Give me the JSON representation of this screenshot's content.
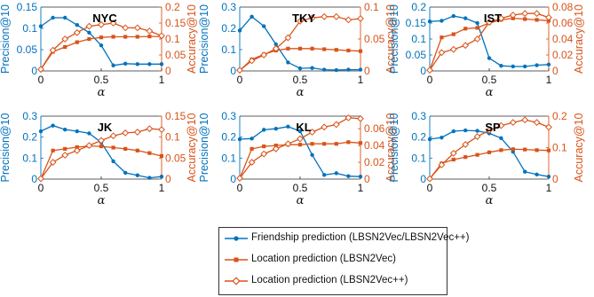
{
  "colors": {
    "friendship": "#0072BD",
    "location": "#D95319",
    "axis": "#262626"
  },
  "legend": [
    {
      "key": "friendship",
      "label": "Friendship prediction (LBSN2Vec/LBSN2Vec++)",
      "color": "#0072BD",
      "marker": "filled-circle"
    },
    {
      "key": "loc_lbsn2vec",
      "label": "Location prediction (LBSN2Vec)",
      "color": "#D95319",
      "marker": "filled-square"
    },
    {
      "key": "loc_lbsn2vecpp",
      "label": "Location prediction (LBSN2Vec++)",
      "color": "#D95319",
      "marker": "open-diamond"
    }
  ],
  "chart_data": [
    {
      "type": "line",
      "title": "NYC",
      "xlabel": "α",
      "ylabel_left": "Precision@10",
      "ylabel_right": "Accuracy@10",
      "x": [
        0,
        0.1,
        0.2,
        0.3,
        0.4,
        0.5,
        0.6,
        0.7,
        0.8,
        0.9,
        1.0
      ],
      "xlim": [
        0,
        1
      ],
      "xticks": [
        "0",
        "0.5",
        "1"
      ],
      "ylim_left": [
        0,
        0.15
      ],
      "yticks_left": [
        "0",
        "0.05",
        "0.1",
        "0.15"
      ],
      "ylim_right": [
        0,
        0.2
      ],
      "yticks_right": [
        "0",
        "0.05",
        "0.1",
        "0.15",
        "0.2"
      ],
      "series": [
        {
          "name": "Friendship prediction (LBSN2Vec/LBSN2Vec++)",
          "axis": "left",
          "marker": "filled-circle",
          "values": [
            0.105,
            0.125,
            0.125,
            0.108,
            0.09,
            0.06,
            0.013,
            0.017,
            0.016,
            0.016,
            0.016
          ]
        },
        {
          "name": "Location prediction (LBSN2Vec)",
          "axis": "right",
          "marker": "filled-square",
          "values": [
            0.005,
            0.06,
            0.075,
            0.09,
            0.1,
            0.105,
            0.107,
            0.107,
            0.107,
            0.108,
            0.108
          ]
        },
        {
          "name": "Location prediction (LBSN2Vec++)",
          "axis": "right",
          "marker": "open-diamond",
          "values": [
            0.005,
            0.065,
            0.1,
            0.12,
            0.14,
            0.145,
            0.15,
            0.135,
            0.135,
            0.125,
            0.11
          ]
        }
      ]
    },
    {
      "type": "line",
      "title": "TKY",
      "xlabel": "α",
      "ylabel_left": "Precision@10",
      "ylabel_right": "Accuracy@10",
      "x": [
        0,
        0.1,
        0.2,
        0.3,
        0.4,
        0.5,
        0.6,
        0.7,
        0.8,
        0.9,
        1.0
      ],
      "xlim": [
        0,
        1
      ],
      "xticks": [
        "0",
        "0.5",
        "1"
      ],
      "ylim_left": [
        0,
        0.3
      ],
      "yticks_left": [
        "0",
        "0.1",
        "0.2",
        "0.3"
      ],
      "ylim_right": [
        0,
        0.1
      ],
      "yticks_right": [
        "0",
        "0.05",
        "0.1"
      ],
      "series": [
        {
          "name": "Friendship prediction (LBSN2Vec/LBSN2Vec++)",
          "axis": "left",
          "marker": "filled-circle",
          "values": [
            0.19,
            0.255,
            0.21,
            0.125,
            0.04,
            0.012,
            0.014,
            0.006,
            0.004,
            0.006,
            0.006
          ]
        },
        {
          "name": "Location prediction (LBSN2Vec)",
          "axis": "right",
          "marker": "filled-square",
          "values": [
            0.001,
            0.018,
            0.026,
            0.032,
            0.035,
            0.035,
            0.035,
            0.034,
            0.033,
            0.032,
            0.031
          ]
        },
        {
          "name": "Location prediction (LBSN2Vec++)",
          "axis": "right",
          "marker": "open-diamond",
          "values": [
            0.001,
            0.016,
            0.025,
            0.035,
            0.052,
            0.078,
            0.083,
            0.085,
            0.085,
            0.08,
            0.082
          ]
        }
      ]
    },
    {
      "type": "line",
      "title": "IST",
      "xlabel": "α",
      "ylabel_left": "Precision@10",
      "ylabel_right": "Accuracy@10",
      "x": [
        0,
        0.1,
        0.2,
        0.3,
        0.4,
        0.5,
        0.6,
        0.7,
        0.8,
        0.9,
        1.0
      ],
      "xlim": [
        0,
        1
      ],
      "xticks": [
        "0",
        "0.5",
        "1"
      ],
      "ylim_left": [
        0,
        0.2
      ],
      "yticks_left": [
        "0",
        "0.05",
        "0.1",
        "0.15",
        "0.2"
      ],
      "ylim_right": [
        0,
        0.08
      ],
      "yticks_right": [
        "0",
        "0.02",
        "0.04",
        "0.06",
        "0.08"
      ],
      "series": [
        {
          "name": "Friendship prediction (LBSN2Vec/LBSN2Vec++)",
          "axis": "left",
          "marker": "filled-circle",
          "values": [
            0.155,
            0.157,
            0.172,
            0.165,
            0.15,
            0.04,
            0.016,
            0.014,
            0.014,
            0.018,
            0.02
          ]
        },
        {
          "name": "Location prediction (LBSN2Vec)",
          "axis": "right",
          "marker": "filled-square",
          "values": [
            0.001,
            0.042,
            0.046,
            0.053,
            0.054,
            0.06,
            0.064,
            0.066,
            0.065,
            0.064,
            0.063
          ]
        },
        {
          "name": "Location prediction (LBSN2Vec++)",
          "axis": "right",
          "marker": "open-diamond",
          "values": [
            0.001,
            0.023,
            0.027,
            0.032,
            0.04,
            0.061,
            0.066,
            0.07,
            0.072,
            0.072,
            0.067
          ]
        }
      ]
    },
    {
      "type": "line",
      "title": "JK",
      "xlabel": "α",
      "ylabel_left": "Precision@10",
      "ylabel_right": "Accuracy@10",
      "x": [
        0,
        0.1,
        0.2,
        0.3,
        0.4,
        0.5,
        0.6,
        0.7,
        0.8,
        0.9,
        1.0
      ],
      "xlim": [
        0,
        1
      ],
      "xticks": [
        "0",
        "0.5",
        "1"
      ],
      "ylim_left": [
        0,
        0.3
      ],
      "yticks_left": [
        "0",
        "0.1",
        "0.2",
        "0.3"
      ],
      "ylim_right": [
        0,
        0.15
      ],
      "yticks_right": [
        "0",
        "0.05",
        "0.1",
        "0.15"
      ],
      "series": [
        {
          "name": "Friendship prediction (LBSN2Vec/LBSN2Vec++)",
          "axis": "left",
          "marker": "filled-circle",
          "values": [
            0.228,
            0.255,
            0.236,
            0.228,
            0.218,
            0.175,
            0.085,
            0.03,
            0.018,
            0.006,
            0.012
          ]
        },
        {
          "name": "Location prediction (LBSN2Vec)",
          "axis": "right",
          "marker": "filled-square",
          "values": [
            0.001,
            0.068,
            0.072,
            0.076,
            0.079,
            0.078,
            0.075,
            0.072,
            0.068,
            0.062,
            0.055
          ]
        },
        {
          "name": "Location prediction (LBSN2Vec++)",
          "axis": "right",
          "marker": "open-diamond",
          "values": [
            0.001,
            0.04,
            0.057,
            0.068,
            0.08,
            0.092,
            0.103,
            0.11,
            0.112,
            0.12,
            0.118
          ]
        }
      ]
    },
    {
      "type": "line",
      "title": "KL",
      "xlabel": "α",
      "ylabel_left": "Precision@10",
      "ylabel_right": "Accuracy@10",
      "x": [
        0,
        0.1,
        0.2,
        0.3,
        0.4,
        0.5,
        0.6,
        0.7,
        0.8,
        0.9,
        1.0
      ],
      "xlim": [
        0,
        1
      ],
      "xticks": [
        "0",
        "0.5",
        "1"
      ],
      "ylim_left": [
        0,
        0.3
      ],
      "yticks_left": [
        "0",
        "0.1",
        "0.2",
        "0.3"
      ],
      "ylim_right": [
        0,
        0.075
      ],
      "yticks_right": [
        "0",
        "0.02",
        "0.04",
        "0.06"
      ],
      "series": [
        {
          "name": "Friendship prediction (LBSN2Vec/LBSN2Vec++)",
          "axis": "left",
          "marker": "filled-circle",
          "values": [
            0.19,
            0.193,
            0.235,
            0.24,
            0.25,
            0.228,
            0.115,
            0.02,
            0.028,
            0.014,
            0.012
          ]
        },
        {
          "name": "Location prediction (LBSN2Vec)",
          "axis": "right",
          "marker": "filled-square",
          "values": [
            0.001,
            0.036,
            0.039,
            0.04,
            0.041,
            0.041,
            0.042,
            0.042,
            0.042,
            0.044,
            0.043
          ]
        },
        {
          "name": "Location prediction (LBSN2Vec++)",
          "axis": "right",
          "marker": "open-diamond",
          "values": [
            0.001,
            0.02,
            0.03,
            0.036,
            0.042,
            0.048,
            0.056,
            0.062,
            0.065,
            0.073,
            0.072
          ]
        }
      ]
    },
    {
      "type": "line",
      "title": "SP",
      "xlabel": "α",
      "ylabel_left": "Precision@10",
      "ylabel_right": "Accuracy@10",
      "x": [
        0,
        0.1,
        0.2,
        0.3,
        0.4,
        0.5,
        0.6,
        0.7,
        0.8,
        0.9,
        1.0
      ],
      "xlim": [
        0,
        1
      ],
      "xticks": [
        "0",
        "0.5",
        "1"
      ],
      "ylim_left": [
        0,
        0.3
      ],
      "yticks_left": [
        "0",
        "0.1",
        "0.2",
        "0.3"
      ],
      "ylim_right": [
        0,
        0.2
      ],
      "yticks_right": [
        "0",
        "0.1",
        "0.2"
      ],
      "series": [
        {
          "name": "Friendship prediction (LBSN2Vec/LBSN2Vec++)",
          "axis": "left",
          "marker": "filled-circle",
          "values": [
            0.19,
            0.198,
            0.228,
            0.232,
            0.23,
            0.218,
            0.195,
            0.13,
            0.035,
            0.022,
            0.012
          ]
        },
        {
          "name": "Location prediction (LBSN2Vec)",
          "axis": "right",
          "marker": "filled-square",
          "values": [
            0.001,
            0.05,
            0.062,
            0.07,
            0.077,
            0.085,
            0.092,
            0.095,
            0.094,
            0.092,
            0.091
          ]
        },
        {
          "name": "Location prediction (LBSN2Vec++)",
          "axis": "right",
          "marker": "open-diamond",
          "values": [
            0.001,
            0.045,
            0.082,
            0.11,
            0.135,
            0.155,
            0.17,
            0.18,
            0.188,
            0.18,
            0.165
          ]
        }
      ]
    }
  ]
}
